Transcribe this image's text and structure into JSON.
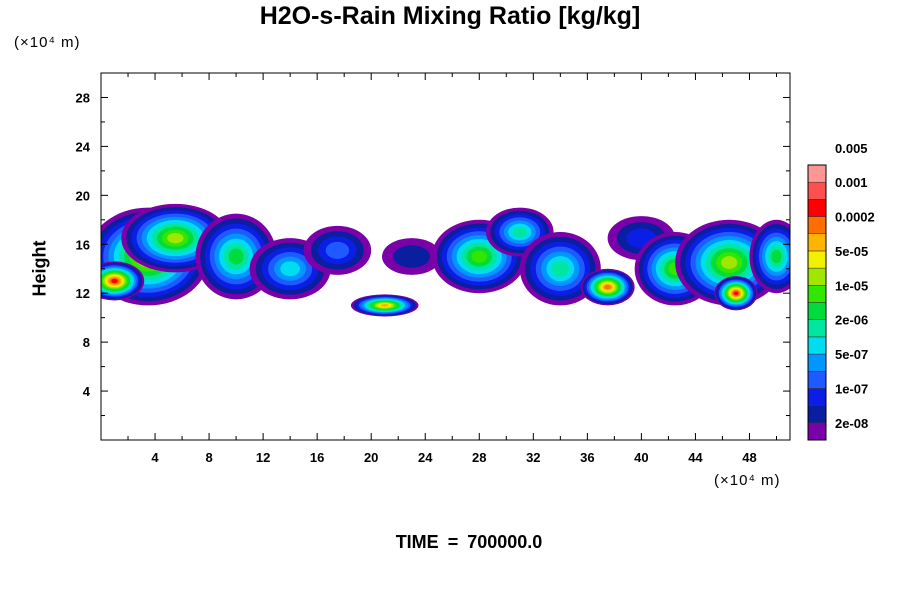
{
  "chart_data": {
    "type": "heatmap",
    "title": "H2O-s-Rain Mixing Ratio [kg/kg]",
    "ylabel": "Height",
    "x_unit": "(×10⁴ m)",
    "y_unit": "(×10⁴ m)",
    "footer": {
      "label": "TIME",
      "equals": "=",
      "value": "700000.0"
    },
    "xlim": [
      0,
      51
    ],
    "ylim": [
      0,
      30
    ],
    "x_ticks": [
      "4",
      "8",
      "12",
      "16",
      "20",
      "24",
      "28",
      "32",
      "36",
      "40",
      "44",
      "48"
    ],
    "y_ticks": [
      "4",
      "8",
      "12",
      "16",
      "20",
      "24",
      "28"
    ],
    "colorbar": {
      "colors": [
        "#7a00a8",
        "#0a1ea0",
        "#0a1ee6",
        "#1e5aff",
        "#0096ff",
        "#00dcf0",
        "#00e6a0",
        "#00dc3c",
        "#32e600",
        "#a0e600",
        "#f0f000",
        "#ffb400",
        "#ff6e00",
        "#ff0000",
        "#ff5050",
        "#ff9696"
      ],
      "labels": [
        "2e-08",
        "1e-07",
        "5e-07",
        "2e-06",
        "1e-05",
        "5e-05",
        "0.0002",
        "0.001",
        "0.005"
      ]
    },
    "clouds": [
      {
        "x": 3.5,
        "y": 15.0,
        "rx": 4.5,
        "ry": 4.0,
        "level": 10
      },
      {
        "x": 1.0,
        "y": 13.0,
        "rx": 2.2,
        "ry": 1.6,
        "level": 13
      },
      {
        "x": 5.5,
        "y": 16.5,
        "rx": 4.0,
        "ry": 2.8,
        "level": 9
      },
      {
        "x": 10.0,
        "y": 15.0,
        "rx": 3.0,
        "ry": 3.5,
        "level": 7
      },
      {
        "x": 14.0,
        "y": 14.0,
        "rx": 3.0,
        "ry": 2.5,
        "level": 5
      },
      {
        "x": 17.5,
        "y": 15.5,
        "rx": 2.5,
        "ry": 2.0,
        "level": 3
      },
      {
        "x": 21.0,
        "y": 11.0,
        "rx": 2.5,
        "ry": 0.9,
        "level": 11
      },
      {
        "x": 23.0,
        "y": 15.0,
        "rx": 2.2,
        "ry": 1.5,
        "level": 1
      },
      {
        "x": 28.0,
        "y": 15.0,
        "rx": 3.5,
        "ry": 3.0,
        "level": 8
      },
      {
        "x": 31.0,
        "y": 17.0,
        "rx": 2.5,
        "ry": 2.0,
        "level": 6
      },
      {
        "x": 34.0,
        "y": 14.0,
        "rx": 3.0,
        "ry": 3.0,
        "level": 6
      },
      {
        "x": 37.5,
        "y": 12.5,
        "rx": 2.0,
        "ry": 1.5,
        "level": 12
      },
      {
        "x": 40.0,
        "y": 16.5,
        "rx": 2.5,
        "ry": 1.8,
        "level": 2
      },
      {
        "x": 42.5,
        "y": 14.0,
        "rx": 3.0,
        "ry": 3.0,
        "level": 8
      },
      {
        "x": 46.5,
        "y": 14.5,
        "rx": 4.0,
        "ry": 3.5,
        "level": 9
      },
      {
        "x": 47.0,
        "y": 12.0,
        "rx": 1.6,
        "ry": 1.4,
        "level": 13
      },
      {
        "x": 50.0,
        "y": 15.0,
        "rx": 2.0,
        "ry": 3.0,
        "level": 7
      }
    ]
  }
}
